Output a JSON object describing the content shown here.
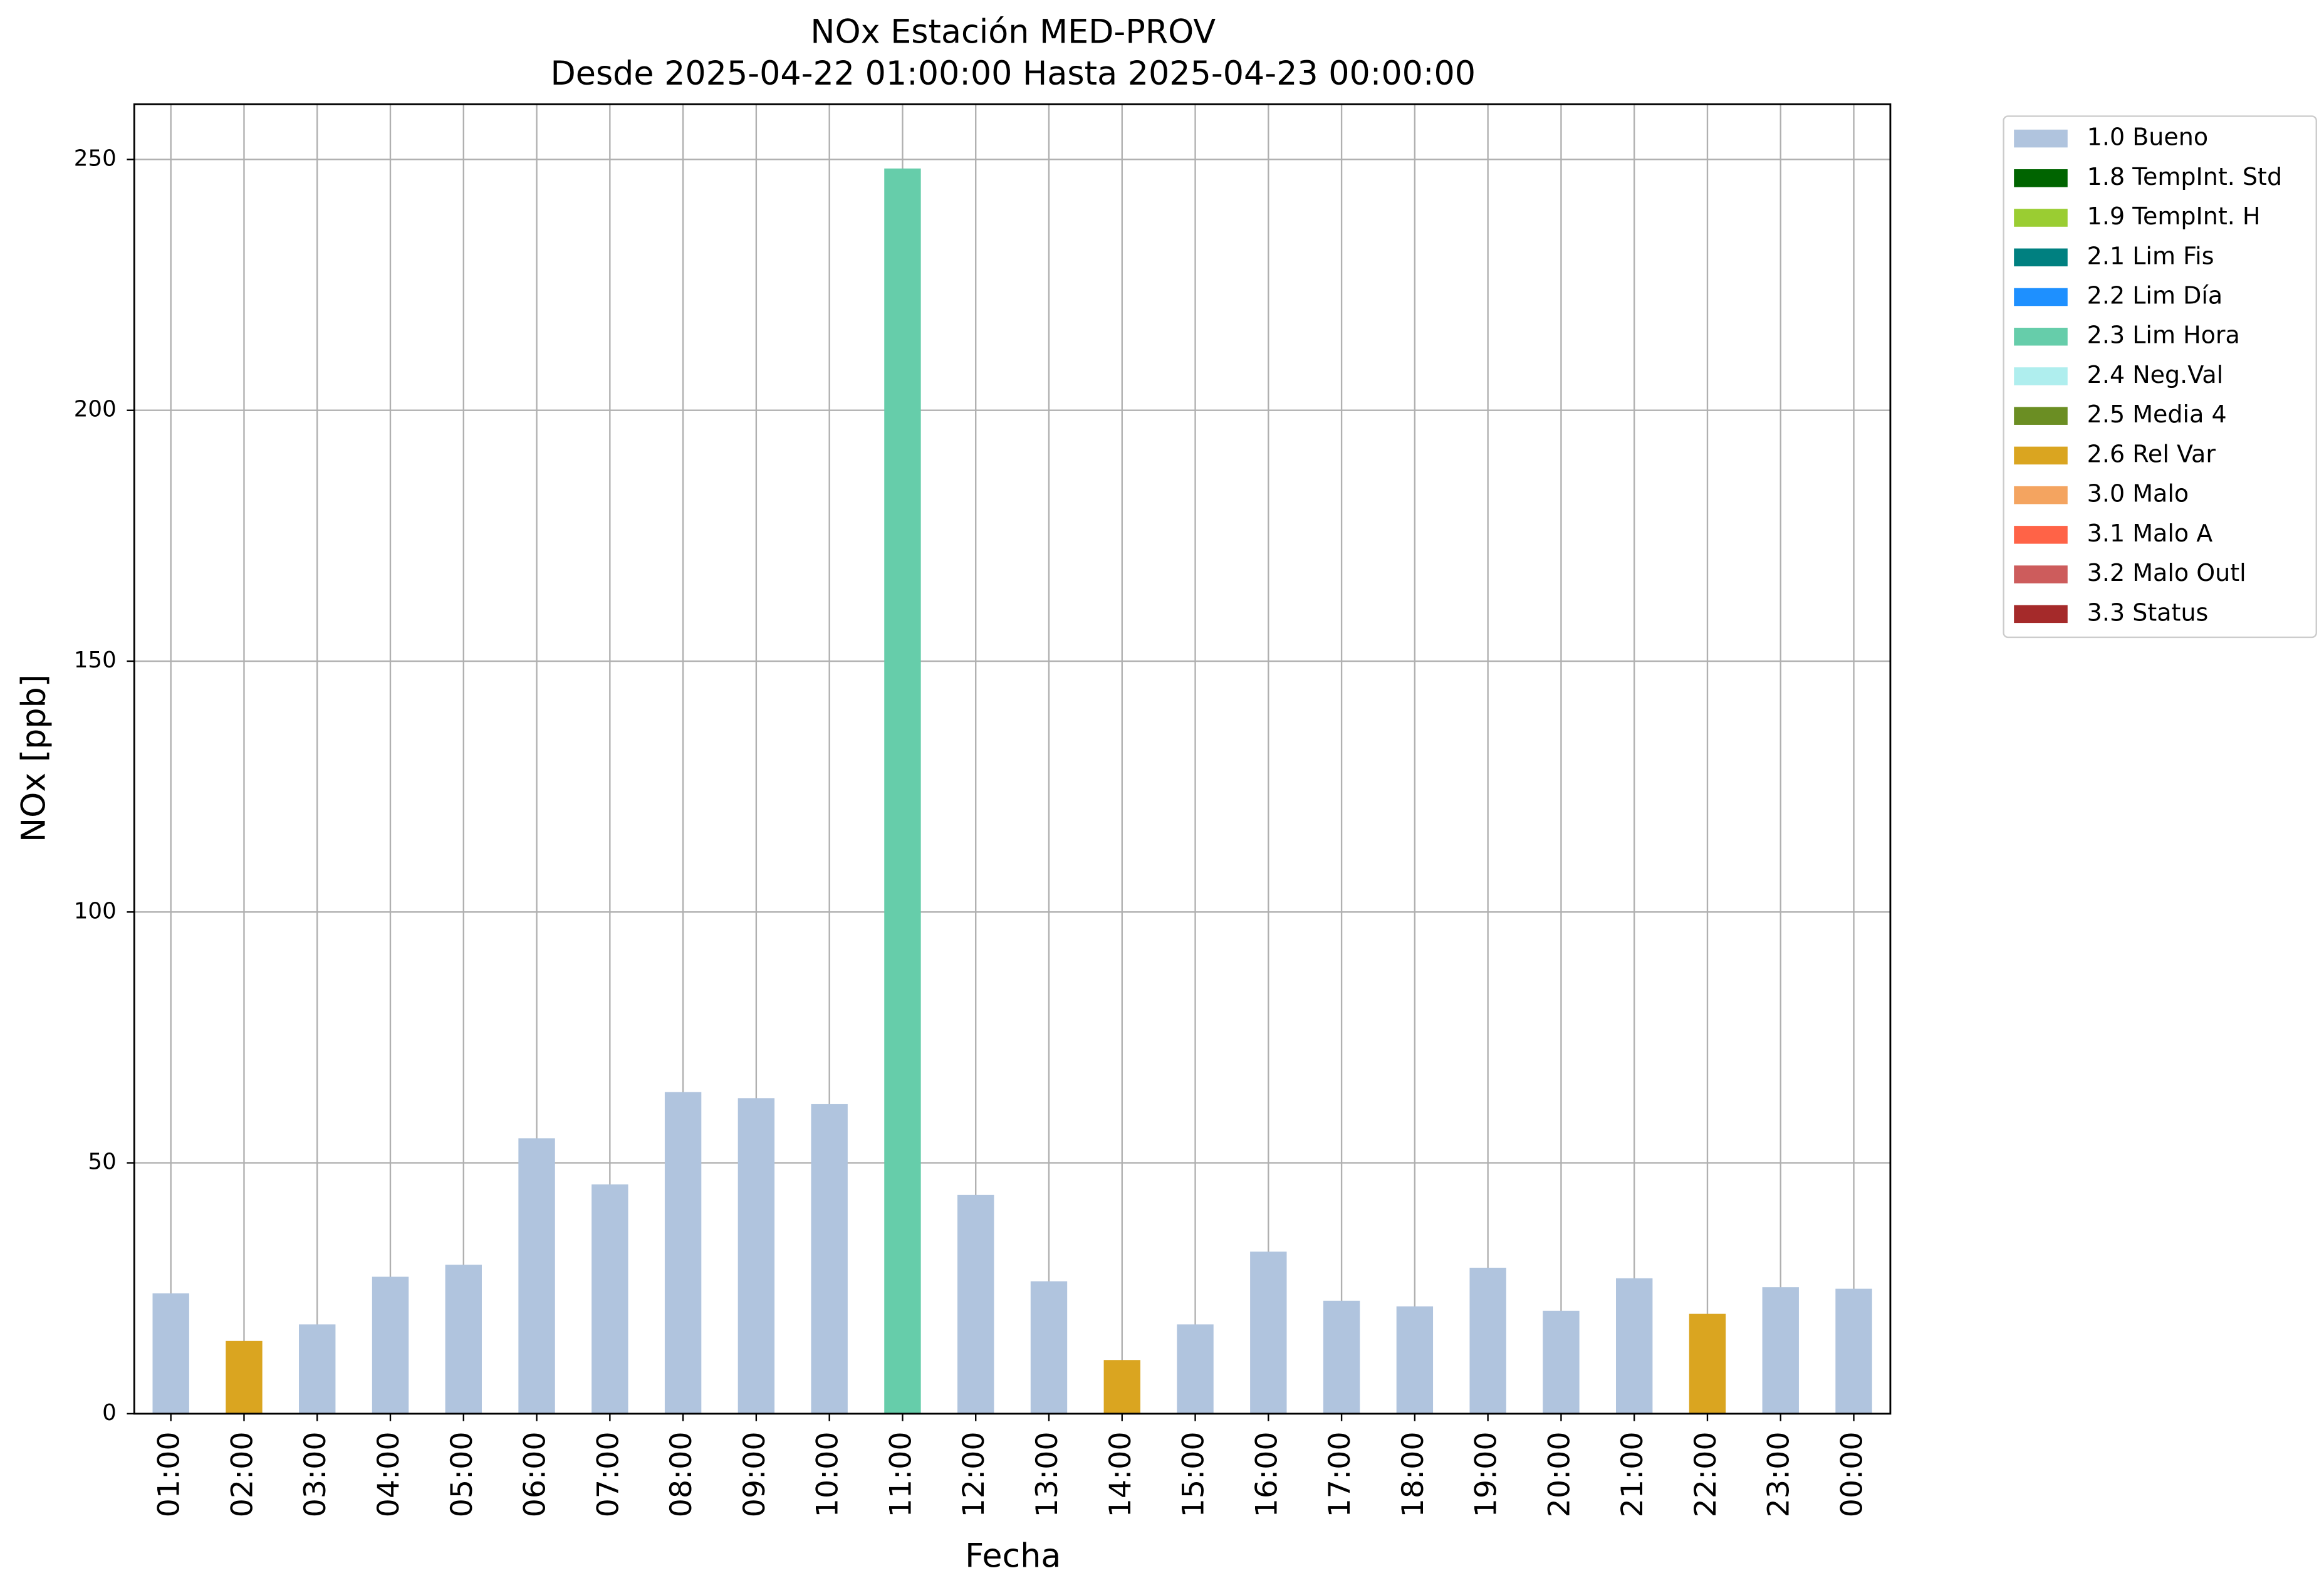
{
  "chart_data": {
    "type": "bar",
    "title": "NOx Estación MED-PROV",
    "subtitle": "Desde 2025-04-22 01:00:00 Hasta 2025-04-23 00:00:00",
    "x_label": "Fecha",
    "y_label": "NOx [ppb]",
    "categories": [
      "01:00",
      "02:00",
      "03:00",
      "04:00",
      "05:00",
      "06:00",
      "07:00",
      "08:00",
      "09:00",
      "10:00",
      "11:00",
      "12:00",
      "13:00",
      "14:00",
      "15:00",
      "16:00",
      "17:00",
      "18:00",
      "19:00",
      "20:00",
      "21:00",
      "22:00",
      "23:00",
      "00:00"
    ],
    "series": [
      {
        "name": "1.0 Bueno",
        "color": "#b0c4de",
        "values": [
          24.0,
          null,
          17.8,
          27.3,
          29.7,
          54.9,
          45.7,
          64.1,
          62.9,
          61.7,
          null,
          43.6,
          26.4,
          null,
          17.8,
          32.3,
          22.5,
          21.4,
          29.1,
          20.5,
          27.0,
          null,
          25.2,
          24.9
        ]
      },
      {
        "name": "1.8 TempInt. Std",
        "color": "#006400",
        "values": [
          null,
          null,
          null,
          null,
          null,
          null,
          null,
          null,
          null,
          null,
          null,
          null,
          null,
          null,
          null,
          null,
          null,
          null,
          null,
          null,
          null,
          null,
          null,
          null
        ]
      },
      {
        "name": "1.9 TempInt. H",
        "color": "#9acd32",
        "values": [
          null,
          null,
          null,
          null,
          null,
          null,
          null,
          null,
          null,
          null,
          null,
          null,
          null,
          null,
          null,
          null,
          null,
          null,
          null,
          null,
          null,
          null,
          null,
          null
        ]
      },
      {
        "name": "2.1 Lim Fis",
        "color": "#008080",
        "values": [
          null,
          null,
          null,
          null,
          null,
          null,
          null,
          null,
          null,
          null,
          null,
          null,
          null,
          null,
          null,
          null,
          null,
          null,
          null,
          null,
          null,
          null,
          null,
          null
        ]
      },
      {
        "name": "2.2 Lim Día",
        "color": "#1e90ff",
        "values": [
          null,
          null,
          null,
          null,
          null,
          null,
          null,
          null,
          null,
          null,
          null,
          null,
          null,
          null,
          null,
          null,
          null,
          null,
          null,
          null,
          null,
          null,
          null,
          null
        ]
      },
      {
        "name": "2.3 Lim Hora",
        "color": "#66cdaa",
        "values": [
          null,
          null,
          null,
          null,
          null,
          null,
          null,
          null,
          null,
          null,
          248.2,
          null,
          null,
          null,
          null,
          null,
          null,
          null,
          null,
          null,
          null,
          null,
          null,
          null
        ]
      },
      {
        "name": "2.4 Neg.Val",
        "color": "#afeeee",
        "values": [
          null,
          null,
          null,
          null,
          null,
          null,
          null,
          null,
          null,
          null,
          null,
          null,
          null,
          null,
          null,
          null,
          null,
          null,
          null,
          null,
          null,
          null,
          null,
          null
        ]
      },
      {
        "name": "2.5 Media 4",
        "color": "#6b8e23",
        "values": [
          null,
          null,
          null,
          null,
          null,
          null,
          null,
          null,
          null,
          null,
          null,
          null,
          null,
          null,
          null,
          null,
          null,
          null,
          null,
          null,
          null,
          null,
          null,
          null
        ]
      },
      {
        "name": "2.6 Rel Var",
        "color": "#daa520",
        "values": [
          null,
          14.5,
          null,
          null,
          null,
          null,
          null,
          null,
          null,
          null,
          null,
          null,
          null,
          10.7,
          null,
          null,
          null,
          null,
          null,
          null,
          null,
          19.9,
          null,
          null
        ]
      },
      {
        "name": "3.0 Malo",
        "color": "#f4a460",
        "values": [
          null,
          null,
          null,
          null,
          null,
          null,
          null,
          null,
          null,
          null,
          null,
          null,
          null,
          null,
          null,
          null,
          null,
          null,
          null,
          null,
          null,
          null,
          null,
          null
        ]
      },
      {
        "name": "3.1 Malo A",
        "color": "#ff6347",
        "values": [
          null,
          null,
          null,
          null,
          null,
          null,
          null,
          null,
          null,
          null,
          null,
          null,
          null,
          null,
          null,
          null,
          null,
          null,
          null,
          null,
          null,
          null,
          null,
          null
        ]
      },
      {
        "name": "3.2 Malo Outl",
        "color": "#cd5c5c",
        "values": [
          null,
          null,
          null,
          null,
          null,
          null,
          null,
          null,
          null,
          null,
          null,
          null,
          null,
          null,
          null,
          null,
          null,
          null,
          null,
          null,
          null,
          null,
          null,
          null
        ]
      },
      {
        "name": "3.3 Status",
        "color": "#a52a2a",
        "values": [
          null,
          null,
          null,
          null,
          null,
          null,
          null,
          null,
          null,
          null,
          null,
          null,
          null,
          null,
          null,
          null,
          null,
          null,
          null,
          null,
          null,
          null,
          null,
          null
        ]
      }
    ],
    "ylim": [
      0,
      261
    ],
    "yticks": [
      0,
      50,
      100,
      150,
      200,
      250
    ],
    "grid": true,
    "legend": "outside-right"
  }
}
